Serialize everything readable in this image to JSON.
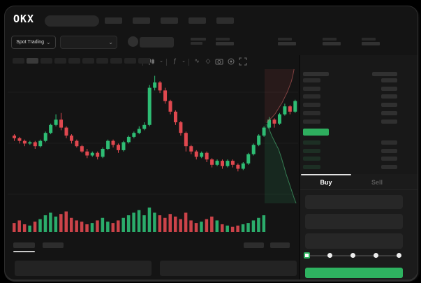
{
  "brand": {
    "logo": "OKX"
  },
  "toolbar": {
    "market_selector_label": "Spot Trading",
    "timeframe_pill_count": 10,
    "active_timeframe_index": 1
  },
  "nav": {
    "pill_count": 5
  },
  "ticker": {
    "stat_count": 4
  },
  "icons": {
    "chevron_down": "⌄",
    "line_tool": "∿",
    "eraser_tool": "◇",
    "indicators": "ƒ"
  },
  "orderbook": {
    "ask_row_count": 6,
    "bid_row_count": 4,
    "last_price_color": "#2EAE5E"
  },
  "trade_panel": {
    "buy_tab_label": "Buy",
    "sell_tab_label": "Sell",
    "field_count": 3,
    "slider_stop_count": 5,
    "slider_active_index": 0,
    "buy_button_color": "#2EB260"
  },
  "colors": {
    "up": "#2EBD74",
    "down": "#E0484F",
    "background": "#141414"
  },
  "chart_data": [
    {
      "type": "candlestick",
      "title": "",
      "ylim": [
        0,
        100
      ],
      "grid": true,
      "candles": [
        [
          50,
          51,
          46,
          48
        ],
        [
          48,
          49,
          44,
          46
        ],
        [
          46,
          47,
          42,
          44
        ],
        [
          44,
          46,
          43,
          45
        ],
        [
          45,
          46,
          40,
          42
        ],
        [
          42,
          47,
          41,
          46
        ],
        [
          46,
          53,
          45,
          52
        ],
        [
          52,
          59,
          51,
          58
        ],
        [
          58,
          66,
          57,
          62
        ],
        [
          62,
          67,
          54,
          56
        ],
        [
          56,
          57,
          48,
          50
        ],
        [
          50,
          51,
          44,
          46
        ],
        [
          46,
          47,
          41,
          42
        ],
        [
          42,
          43,
          37,
          38
        ],
        [
          38,
          40,
          33,
          35
        ],
        [
          35,
          38,
          34,
          37
        ],
        [
          37,
          38,
          32,
          34
        ],
        [
          34,
          41,
          33,
          40
        ],
        [
          40,
          47,
          39,
          46
        ],
        [
          46,
          47,
          41,
          43
        ],
        [
          43,
          44,
          37,
          39
        ],
        [
          39,
          46,
          38,
          45
        ],
        [
          45,
          50,
          44,
          49
        ],
        [
          49,
          53,
          48,
          52
        ],
        [
          52,
          57,
          51,
          55
        ],
        [
          55,
          60,
          54,
          58
        ],
        [
          58,
          88,
          57,
          86
        ],
        [
          86,
          95,
          84,
          90
        ],
        [
          90,
          91,
          82,
          84
        ],
        [
          84,
          86,
          74,
          76
        ],
        [
          76,
          77,
          66,
          68
        ],
        [
          68,
          69,
          58,
          60
        ],
        [
          60,
          61,
          50,
          52
        ],
        [
          52,
          53,
          38,
          42
        ],
        [
          42,
          43,
          36,
          38
        ],
        [
          38,
          39,
          32,
          34
        ],
        [
          34,
          38,
          33,
          37
        ],
        [
          37,
          38,
          30,
          32
        ],
        [
          32,
          33,
          26,
          28
        ],
        [
          28,
          32,
          27,
          31
        ],
        [
          31,
          32,
          25,
          27
        ],
        [
          27,
          32,
          26,
          31
        ],
        [
          31,
          32,
          26,
          28
        ],
        [
          28,
          29,
          23,
          25
        ],
        [
          25,
          30,
          24,
          29
        ],
        [
          29,
          37,
          28,
          36
        ],
        [
          36,
          44,
          35,
          43
        ],
        [
          43,
          51,
          42,
          50
        ],
        [
          50,
          57,
          49,
          56
        ],
        [
          56,
          64,
          55,
          62
        ],
        [
          62,
          63,
          56,
          59
        ],
        [
          59,
          67,
          58,
          66
        ],
        [
          66,
          74,
          65,
          72
        ],
        [
          72,
          73,
          66,
          68
        ],
        [
          68,
          77,
          67,
          76
        ]
      ]
    },
    {
      "type": "bar",
      "name": "volume",
      "values": [
        14,
        18,
        12,
        10,
        16,
        20,
        26,
        30,
        24,
        28,
        32,
        22,
        18,
        16,
        12,
        14,
        18,
        22,
        16,
        14,
        18,
        22,
        26,
        30,
        34,
        26,
        38,
        30,
        26,
        22,
        28,
        24,
        20,
        30,
        18,
        14,
        16,
        20,
        24,
        18,
        12,
        10,
        8,
        10,
        12,
        14,
        18,
        22,
        26
      ]
    },
    {
      "type": "area",
      "name": "market-depth",
      "asks_boundary": [
        [
          0.88,
          0.0
        ],
        [
          0.84,
          0.05
        ],
        [
          0.8,
          0.09
        ],
        [
          0.74,
          0.13
        ],
        [
          0.68,
          0.17
        ],
        [
          0.6,
          0.21
        ],
        [
          0.52,
          0.25
        ],
        [
          0.42,
          0.29
        ],
        [
          0.32,
          0.33
        ],
        [
          0.22,
          0.36
        ],
        [
          0.12,
          0.38
        ],
        [
          0.06,
          0.4
        ]
      ],
      "bids_boundary": [
        [
          0.06,
          0.41
        ],
        [
          0.14,
          0.45
        ],
        [
          0.22,
          0.5
        ],
        [
          0.32,
          0.55
        ],
        [
          0.42,
          0.6
        ],
        [
          0.5,
          0.66
        ],
        [
          0.57,
          0.72
        ],
        [
          0.64,
          0.78
        ],
        [
          0.72,
          0.84
        ],
        [
          0.8,
          0.9
        ],
        [
          0.88,
          0.96
        ],
        [
          0.94,
          1.0
        ]
      ]
    }
  ]
}
